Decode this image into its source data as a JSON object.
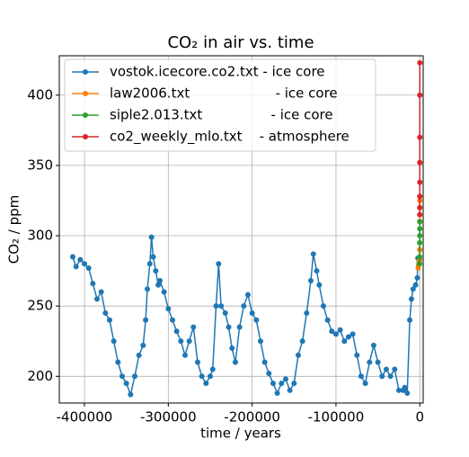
{
  "chart_data": {
    "type": "line",
    "title": "CO₂ in air vs. time",
    "xlabel": "time / years",
    "ylabel": "CO₂ / ppm",
    "xlim": [
      -430000,
      4000
    ],
    "ylim": [
      181,
      428
    ],
    "xticks": [
      -400000,
      -300000,
      -200000,
      -100000,
      0
    ],
    "yticks": [
      200,
      250,
      300,
      350,
      400
    ],
    "grid": true,
    "legend": "upper left",
    "series": [
      {
        "name": "vostok.icecore.co2.txt - ice core",
        "color": "#1f77b4",
        "x": [
          -414000,
          -410000,
          -405000,
          -400000,
          -395000,
          -390000,
          -385000,
          -380000,
          -375000,
          -370000,
          -365000,
          -360000,
          -355000,
          -350000,
          -345000,
          -340000,
          -335000,
          -330000,
          -327000,
          -325000,
          -322000,
          -320000,
          -318000,
          -315000,
          -312000,
          -310000,
          -305000,
          -300000,
          -295000,
          -290000,
          -285000,
          -280000,
          -275000,
          -270000,
          -265000,
          -260000,
          -255000,
          -250000,
          -247000,
          -243000,
          -240000,
          -237000,
          -232000,
          -228000,
          -224000,
          -220000,
          -215000,
          -210000,
          -205000,
          -200000,
          -195000,
          -190000,
          -185000,
          -180000,
          -175000,
          -170000,
          -165000,
          -160000,
          -155000,
          -150000,
          -145000,
          -140000,
          -135000,
          -130000,
          -127000,
          -123000,
          -120000,
          -115000,
          -110000,
          -105000,
          -100000,
          -95000,
          -90000,
          -85000,
          -80000,
          -75000,
          -70000,
          -65000,
          -60000,
          -55000,
          -50000,
          -45000,
          -40000,
          -35000,
          -30000,
          -25000,
          -20000,
          -18000,
          -15000,
          -12000,
          -10000,
          -8000,
          -5000,
          -3000,
          -2300
        ],
        "values": [
          285,
          278,
          283,
          280,
          277,
          266,
          255,
          260,
          245,
          240,
          225,
          210,
          200,
          195,
          187,
          200,
          215,
          222,
          240,
          262,
          280,
          299,
          285,
          275,
          265,
          268,
          260,
          248,
          240,
          232,
          225,
          215,
          225,
          235,
          210,
          200,
          195,
          200,
          205,
          250,
          280,
          250,
          245,
          235,
          220,
          210,
          235,
          250,
          258,
          245,
          240,
          225,
          210,
          202,
          195,
          188,
          195,
          198,
          190,
          195,
          215,
          225,
          245,
          268,
          287,
          275,
          265,
          250,
          240,
          232,
          230,
          233,
          225,
          228,
          230,
          215,
          200,
          195,
          210,
          222,
          210,
          200,
          205,
          200,
          205,
          190,
          190,
          192,
          188,
          240,
          255,
          262,
          265,
          270,
          284
        ]
      },
      {
        "name": "law2006.txt                    - ice core",
        "color": "#ff7f0e",
        "x": [
          -2000,
          -1500,
          -1000,
          -500,
          -200,
          -100,
          -50,
          -20
        ],
        "values": [
          277,
          279,
          281,
          280,
          283,
          290,
          310,
          325
        ]
      },
      {
        "name": "siple2.013.txt                - ice core",
        "color": "#2ca02c",
        "x": [
          -300,
          -200,
          -150,
          -100,
          -50,
          -30
        ],
        "values": [
          280,
          285,
          295,
          300,
          305,
          310
        ]
      },
      {
        "name": "co2_weekly_mlo.txt    - atmosphere",
        "color": "#d62728",
        "x": [
          -65,
          -55,
          -45,
          -35,
          -25,
          -15,
          -5,
          0
        ],
        "values": [
          315,
          320,
          328,
          338,
          352,
          370,
          400,
          423
        ]
      }
    ]
  }
}
